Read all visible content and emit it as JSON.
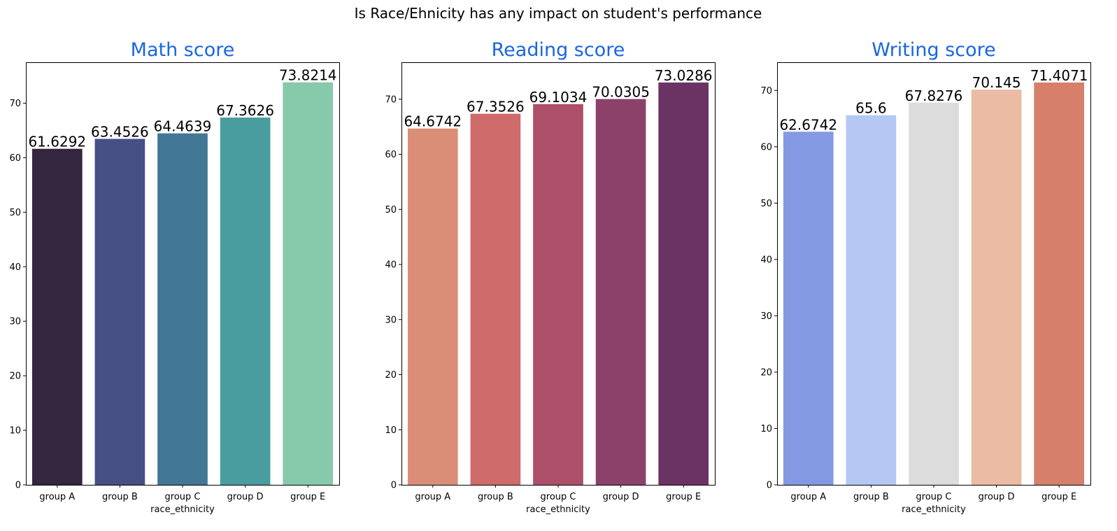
{
  "figure": {
    "title": "Is Race/Ehnicity has any impact on student's performance"
  },
  "chart_data": [
    {
      "type": "bar",
      "title": "Math score",
      "xlabel": "race_ethnicity",
      "ylabel": "",
      "categories": [
        "group A",
        "group B",
        "group C",
        "group D",
        "group E"
      ],
      "values": [
        61.6292,
        63.4526,
        64.4639,
        67.3626,
        73.8214
      ],
      "value_labels": [
        "61.6292",
        "63.4526",
        "64.4639",
        "67.3626",
        "73.8214"
      ],
      "colors": [
        "#35263f",
        "#475084",
        "#437796",
        "#499d9e",
        "#87c9ab"
      ],
      "ylim": [
        0,
        77.5
      ],
      "yticks": [
        0,
        10,
        20,
        30,
        40,
        50,
        60,
        70
      ],
      "title_color": "#1a66e0"
    },
    {
      "type": "bar",
      "title": "Reading score",
      "xlabel": "race_ethnicity",
      "ylabel": "",
      "categories": [
        "group A",
        "group B",
        "group C",
        "group D",
        "group E"
      ],
      "values": [
        64.6742,
        67.3526,
        69.1034,
        70.0305,
        73.0286
      ],
      "value_labels": [
        "64.6742",
        "67.3526",
        "69.1034",
        "70.0305",
        "73.0286"
      ],
      "colors": [
        "#da8e78",
        "#cf6b6a",
        "#ae4f69",
        "#8c416a",
        "#6b3363"
      ],
      "ylim": [
        0,
        76.7
      ],
      "yticks": [
        0,
        10,
        20,
        30,
        40,
        50,
        60,
        70
      ],
      "title_color": "#1a66e0"
    },
    {
      "type": "bar",
      "title": "Writing score",
      "xlabel": "race_ethnicity",
      "ylabel": "",
      "categories": [
        "group A",
        "group B",
        "group C",
        "group D",
        "group E"
      ],
      "values": [
        62.6742,
        65.6,
        67.8276,
        70.145,
        71.4071
      ],
      "value_labels": [
        "62.6742",
        "65.6",
        "67.8276",
        "70.145",
        "71.4071"
      ],
      "colors": [
        "#839ae3",
        "#b4c8f3",
        "#dcdcdc",
        "#ebbba4",
        "#d67f6b"
      ],
      "ylim": [
        0,
        75
      ],
      "yticks": [
        0,
        10,
        20,
        30,
        40,
        50,
        60,
        70
      ],
      "title_color": "#1a66e0"
    }
  ]
}
